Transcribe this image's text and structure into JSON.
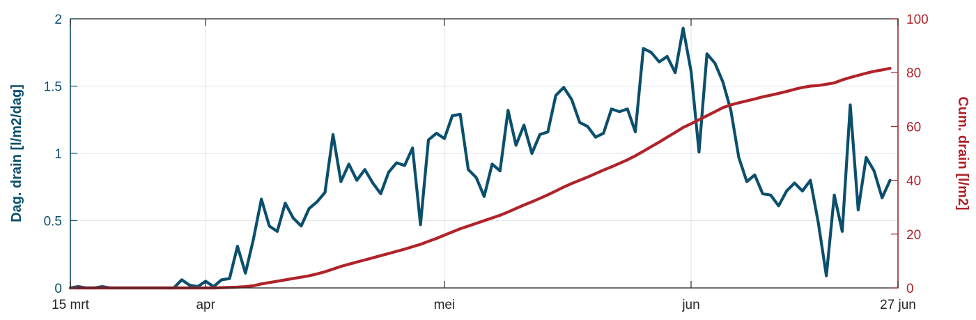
{
  "chart_data": {
    "type": "line",
    "xlim": [
      "15 mrt",
      "27 jun"
    ],
    "x_ticks": [
      {
        "day": 0,
        "label": "15 mrt"
      },
      {
        "day": 17,
        "label": "apr"
      },
      {
        "day": 47,
        "label": "mei"
      },
      {
        "day": 78,
        "label": "jun"
      },
      {
        "day": 104,
        "label": "27 jun"
      }
    ],
    "grid": true,
    "left_axis": {
      "label": "Dag. drain [l/m2/dag]",
      "ylim": [
        0,
        2
      ],
      "ticks": [
        0,
        0.5,
        1,
        1.5,
        2
      ],
      "tick_labels": [
        "0",
        "0.5",
        "1",
        "1.5",
        "2"
      ],
      "color": "#0b4f6c"
    },
    "right_axis": {
      "label": "Cum. drain [l/m2]",
      "ylim": [
        0,
        100
      ],
      "ticks": [
        0,
        20,
        40,
        60,
        80,
        100
      ],
      "tick_labels": [
        "0",
        "20",
        "40",
        "60",
        "80",
        "100"
      ],
      "color": "#b0232a"
    },
    "series": [
      {
        "axis": "left",
        "color": "#0b4f6c",
        "x_start": "15 mrt",
        "x_step": "1 dag",
        "values": [
          0,
          0.01,
          0,
          0,
          0.01,
          0,
          0,
          0,
          0,
          0,
          0,
          0,
          0,
          0,
          0.06,
          0.02,
          0.01,
          0.05,
          0.01,
          0.06,
          0.07,
          0.31,
          0.11,
          0.36,
          0.66,
          0.46,
          0.42,
          0.63,
          0.52,
          0.46,
          0.59,
          0.64,
          0.71,
          1.14,
          0.79,
          0.92,
          0.8,
          0.88,
          0.78,
          0.7,
          0.86,
          0.93,
          0.91,
          1.04,
          0.47,
          1.1,
          1.15,
          1.11,
          1.28,
          1.29,
          0.88,
          0.82,
          0.68,
          0.92,
          0.87,
          1.32,
          1.06,
          1.21,
          1.0,
          1.14,
          1.16,
          1.43,
          1.49,
          1.4,
          1.23,
          1.2,
          1.12,
          1.15,
          1.33,
          1.31,
          1.33,
          1.16,
          1.78,
          1.75,
          1.68,
          1.72,
          1.6,
          1.93,
          1.61,
          1.01,
          1.74,
          1.67,
          1.53,
          1.32,
          0.97,
          0.79,
          0.84,
          0.7,
          0.69,
          0.61,
          0.72,
          0.78,
          0.72,
          0.8,
          0.48,
          0.09,
          0.69,
          0.42,
          1.36,
          0.58,
          0.97,
          0.87,
          0.67,
          0.8
        ]
      },
      {
        "axis": "right",
        "color": "#b0232a",
        "x_start": "15 mrt",
        "x_step": "1 dag",
        "values": [
          0,
          0,
          0,
          0,
          0,
          0,
          0,
          0,
          0,
          0,
          0,
          0,
          0,
          0,
          0,
          0,
          0,
          0,
          0,
          0.1,
          0.2,
          0.3,
          0.5,
          0.8,
          1.5,
          2.0,
          2.5,
          3.0,
          3.5,
          4.0,
          4.5,
          5.2,
          6.0,
          7.0,
          8.0,
          8.8,
          9.6,
          10.4,
          11.2,
          12.0,
          12.8,
          13.6,
          14.4,
          15.3,
          16.2,
          17.3,
          18.4,
          19.6,
          20.8,
          22.0,
          23.0,
          24.0,
          25.0,
          26.0,
          27.0,
          28.2,
          29.5,
          30.8,
          32.0,
          33.3,
          34.6,
          36.0,
          37.5,
          38.8,
          40.0,
          41.2,
          42.5,
          43.8,
          45.0,
          46.3,
          47.6,
          49.1,
          50.8,
          52.5,
          54.2,
          56.0,
          57.8,
          59.6,
          61.0,
          62.5,
          64.0,
          65.5,
          67.0,
          68.0,
          68.8,
          69.5,
          70.2,
          71.0,
          71.6,
          72.3,
          73.0,
          73.8,
          74.5,
          75.0,
          75.2,
          75.7,
          76.2,
          77.3,
          78.2,
          79.0,
          79.8,
          80.5,
          81.0,
          81.6
        ]
      }
    ]
  }
}
